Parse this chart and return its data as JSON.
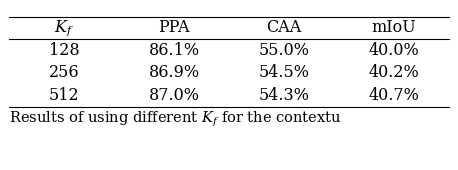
{
  "columns": [
    "$K_f$",
    "PPA",
    "CAA",
    "mIoU"
  ],
  "rows": [
    [
      "128",
      "86.1%",
      "55.0%",
      "40.0%"
    ],
    [
      "256",
      "86.9%",
      "54.5%",
      "40.2%"
    ],
    [
      "512",
      "87.0%",
      "54.3%",
      "40.7%"
    ]
  ],
  "caption": "Results of using different $K_f$ for the contextu",
  "background_color": "#ffffff",
  "text_color": "#000000",
  "font_size": 11.5,
  "caption_font_size": 10.5,
  "line_color": "#000000",
  "line_width": 0.8
}
